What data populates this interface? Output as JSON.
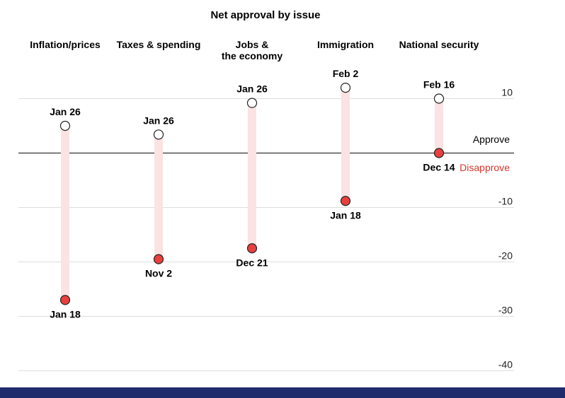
{
  "chart_data": {
    "type": "dot-range",
    "title": "Net approval by issue",
    "categories": [
      "Inflation/prices",
      "Taxes & spending",
      "Jobs &\nthe economy",
      "Immigration",
      "National security"
    ],
    "series": [
      {
        "name": "start",
        "dates": [
          "Jan 26",
          "Jan 26",
          "Jan 26",
          "Feb 2",
          "Feb 16"
        ],
        "values": [
          5,
          3.4,
          9.2,
          12,
          10
        ]
      },
      {
        "name": "end",
        "dates": [
          "Jan 18",
          "Nov 2",
          "Dec 21",
          "Jan 18",
          "Dec 14"
        ],
        "values": [
          -27,
          -19.5,
          -17.5,
          -8.8,
          0
        ]
      }
    ],
    "ylim": [
      -40,
      15
    ],
    "yticks": [
      10,
      0,
      -10,
      -20,
      -30,
      -40
    ],
    "ytick_labels": [
      "10",
      "",
      "-10",
      "-20",
      "-30",
      "-40"
    ],
    "zero_labels": {
      "above": "Approve",
      "below": "Disapprove"
    },
    "colors": {
      "range_bar": "#fbe3e3",
      "end_dot": "#e8403f",
      "start_dot": "#ffffff",
      "disapprove_text": "#d9342b",
      "gridline": "#dddddd",
      "zeroline": "#333333",
      "footer": "#1f2b6b"
    }
  }
}
